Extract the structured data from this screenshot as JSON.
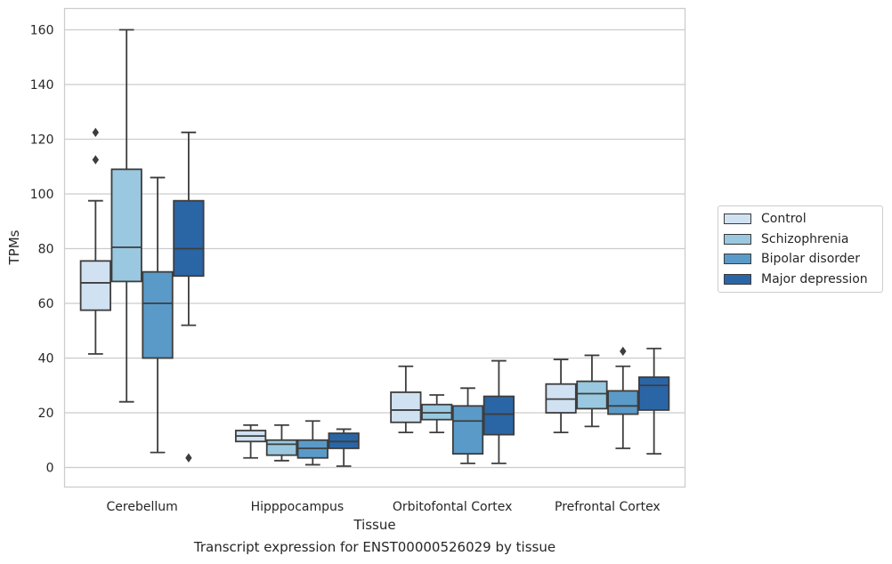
{
  "chart_data": {
    "type": "box",
    "xlabel": "Tissue",
    "ylabel": "TPMs",
    "caption": "Transcript expression for ENST00000526029 by tissue",
    "categories": [
      "Cerebellum",
      "Hipppocampus",
      "Orbitofontal Cortex",
      "Prefrontal Cortex"
    ],
    "ylim": [
      -7,
      168
    ],
    "yticks": [
      0,
      20,
      40,
      60,
      80,
      100,
      120,
      140,
      160
    ],
    "grid": "horizontal",
    "legend_position": "right",
    "series": [
      {
        "name": "Control",
        "color": "#d0e1f2",
        "boxes": [
          {
            "whislo": 41.5,
            "q1": 57.5,
            "med": 67.5,
            "q3": 75.5,
            "whishi": 97.5,
            "fliers": [
              112.5,
              122.5
            ]
          },
          {
            "whislo": 3.5,
            "q1": 9.5,
            "med": 11.5,
            "q3": 13.5,
            "whishi": 15.5,
            "fliers": []
          },
          {
            "whislo": 12.8,
            "q1": 16.5,
            "med": 21.0,
            "q3": 27.5,
            "whishi": 37.0,
            "fliers": []
          },
          {
            "whislo": 12.8,
            "q1": 20.0,
            "med": 25.0,
            "q3": 30.5,
            "whishi": 39.5,
            "fliers": []
          }
        ]
      },
      {
        "name": "Schizophrenia",
        "color": "#9ac8e0",
        "boxes": [
          {
            "whislo": 24.0,
            "q1": 68.0,
            "med": 80.5,
            "q3": 109.0,
            "whishi": 160.0,
            "fliers": []
          },
          {
            "whislo": 2.5,
            "q1": 4.5,
            "med": 8.5,
            "q3": 10.0,
            "whishi": 15.5,
            "fliers": []
          },
          {
            "whislo": 12.8,
            "q1": 17.5,
            "med": 20.0,
            "q3": 23.0,
            "whishi": 26.5,
            "fliers": []
          },
          {
            "whislo": 15.0,
            "q1": 21.5,
            "med": 27.0,
            "q3": 31.5,
            "whishi": 41.0,
            "fliers": []
          }
        ]
      },
      {
        "name": "Bipolar disorder",
        "color": "#5a9ac8",
        "boxes": [
          {
            "whislo": 5.5,
            "q1": 40.0,
            "med": 60.0,
            "q3": 71.5,
            "whishi": 106.0,
            "fliers": []
          },
          {
            "whislo": 1.0,
            "q1": 3.5,
            "med": 7.0,
            "q3": 10.0,
            "whishi": 17.0,
            "fliers": []
          },
          {
            "whislo": 1.5,
            "q1": 5.0,
            "med": 17.0,
            "q3": 22.5,
            "whishi": 29.0,
            "fliers": []
          },
          {
            "whislo": 7.0,
            "q1": 19.5,
            "med": 22.5,
            "q3": 28.0,
            "whishi": 37.0,
            "fliers": [
              42.5
            ]
          }
        ]
      },
      {
        "name": "Major depression",
        "color": "#2a66a6",
        "boxes": [
          {
            "whislo": 52.0,
            "q1": 70.0,
            "med": 80.0,
            "q3": 97.5,
            "whishi": 122.5,
            "fliers": [
              3.5
            ]
          },
          {
            "whislo": 0.5,
            "q1": 7.0,
            "med": 9.5,
            "q3": 12.5,
            "whishi": 14.0,
            "fliers": []
          },
          {
            "whislo": 1.5,
            "q1": 12.0,
            "med": 19.5,
            "q3": 26.0,
            "whishi": 39.0,
            "fliers": []
          },
          {
            "whislo": 5.0,
            "q1": 21.0,
            "med": 30.0,
            "q3": 33.0,
            "whishi": 43.5,
            "fliers": []
          }
        ]
      }
    ]
  }
}
